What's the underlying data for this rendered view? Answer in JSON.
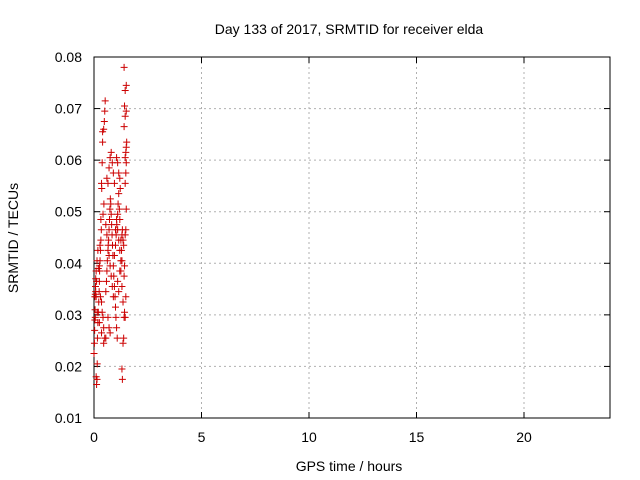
{
  "chart_data": {
    "type": "scatter",
    "title": "Day 133 of 2017, SRMTID for receiver elda",
    "xlabel": "GPS time / hours",
    "ylabel": "SRMTID / TECUs",
    "xlim": [
      0,
      24
    ],
    "ylim": [
      0.01,
      0.08
    ],
    "xticks": [
      0,
      5,
      10,
      15,
      20
    ],
    "yticks": [
      0.01,
      0.02,
      0.03,
      0.04,
      0.05,
      0.06,
      0.07,
      0.08
    ],
    "xtick_labels": [
      "0",
      "5",
      "10",
      "15",
      "20"
    ],
    "ytick_labels": [
      "0.01",
      "0.02",
      "0.03",
      "0.04",
      "0.05",
      "0.06",
      "0.07",
      "0.08"
    ],
    "grid": true,
    "marker": "+",
    "color": "#cc0000",
    "series": [
      {
        "points": [
          [
            0.0,
            0.0225
          ],
          [
            0.02,
            0.0245
          ],
          [
            0.03,
            0.027
          ],
          [
            0.04,
            0.029
          ],
          [
            0.05,
            0.031
          ],
          [
            0.06,
            0.034
          ],
          [
            0.07,
            0.0355
          ],
          [
            0.08,
            0.037
          ],
          [
            0.1,
            0.018
          ],
          [
            0.12,
            0.0165
          ],
          [
            0.14,
            0.0175
          ],
          [
            0.15,
            0.0205
          ],
          [
            0.16,
            0.0255
          ],
          [
            0.18,
            0.0285
          ],
          [
            0.2,
            0.0305
          ],
          [
            0.22,
            0.0325
          ],
          [
            0.24,
            0.0345
          ],
          [
            0.25,
            0.0365
          ],
          [
            0.26,
            0.0385
          ],
          [
            0.28,
            0.0405
          ],
          [
            0.3,
            0.0425
          ],
          [
            0.32,
            0.0445
          ],
          [
            0.34,
            0.0465
          ],
          [
            0.35,
            0.0555
          ],
          [
            0.36,
            0.0545
          ],
          [
            0.38,
            0.0595
          ],
          [
            0.4,
            0.0635
          ],
          [
            0.4,
            0.0655
          ],
          [
            0.45,
            0.066
          ],
          [
            0.48,
            0.0675
          ],
          [
            0.5,
            0.0695
          ],
          [
            0.52,
            0.0715
          ],
          [
            0.2,
            0.039
          ],
          [
            0.25,
            0.0395
          ],
          [
            0.3,
            0.0335
          ],
          [
            0.35,
            0.0325
          ],
          [
            0.38,
            0.0305
          ],
          [
            0.42,
            0.0295
          ],
          [
            0.45,
            0.0275
          ],
          [
            0.5,
            0.0255
          ],
          [
            0.55,
            0.0345
          ],
          [
            0.58,
            0.0365
          ],
          [
            0.6,
            0.0385
          ],
          [
            0.62,
            0.0405
          ],
          [
            0.65,
            0.0425
          ],
          [
            0.68,
            0.0445
          ],
          [
            0.7,
            0.0465
          ],
          [
            0.72,
            0.0485
          ],
          [
            0.74,
            0.0505
          ],
          [
            0.76,
            0.0525
          ],
          [
            0.78,
            0.0515
          ],
          [
            0.8,
            0.0495
          ],
          [
            0.82,
            0.0475
          ],
          [
            0.84,
            0.0455
          ],
          [
            0.86,
            0.0435
          ],
          [
            0.88,
            0.0415
          ],
          [
            0.6,
            0.0565
          ],
          [
            0.65,
            0.0555
          ],
          [
            0.7,
            0.0585
          ],
          [
            0.75,
            0.0605
          ],
          [
            0.8,
            0.0615
          ],
          [
            0.85,
            0.0595
          ],
          [
            0.9,
            0.0575
          ],
          [
            0.95,
            0.0555
          ],
          [
            0.9,
            0.0395
          ],
          [
            0.92,
            0.0375
          ],
          [
            0.95,
            0.0355
          ],
          [
            0.98,
            0.0335
          ],
          [
            1.0,
            0.0315
          ],
          [
            1.02,
            0.0295
          ],
          [
            1.05,
            0.0275
          ],
          [
            1.08,
            0.0255
          ],
          [
            1.0,
            0.0435
          ],
          [
            1.03,
            0.0455
          ],
          [
            1.06,
            0.0475
          ],
          [
            1.1,
            0.0495
          ],
          [
            1.12,
            0.0515
          ],
          [
            1.15,
            0.0535
          ],
          [
            1.18,
            0.0505
          ],
          [
            1.2,
            0.0485
          ],
          [
            1.05,
            0.0605
          ],
          [
            1.1,
            0.0595
          ],
          [
            1.15,
            0.0575
          ],
          [
            1.2,
            0.0565
          ],
          [
            1.22,
            0.0545
          ],
          [
            1.25,
            0.0445
          ],
          [
            1.28,
            0.0425
          ],
          [
            1.3,
            0.0405
          ],
          [
            1.1,
            0.0365
          ],
          [
            1.15,
            0.0345
          ],
          [
            1.2,
            0.0385
          ],
          [
            1.25,
            0.0405
          ],
          [
            1.3,
            0.0455
          ],
          [
            1.32,
            0.0465
          ],
          [
            1.35,
            0.0445
          ],
          [
            1.38,
            0.0435
          ],
          [
            1.3,
            0.0195
          ],
          [
            1.32,
            0.0175
          ],
          [
            1.35,
            0.0245
          ],
          [
            1.38,
            0.0255
          ],
          [
            1.4,
            0.0295
          ],
          [
            1.42,
            0.0305
          ],
          [
            1.45,
            0.0295
          ],
          [
            1.48,
            0.0335
          ],
          [
            1.4,
            0.0375
          ],
          [
            1.42,
            0.0395
          ],
          [
            1.45,
            0.0455
          ],
          [
            1.48,
            0.0465
          ],
          [
            1.5,
            0.0505
          ],
          [
            1.45,
            0.0555
          ],
          [
            1.48,
            0.0575
          ],
          [
            1.5,
            0.0595
          ],
          [
            1.45,
            0.0605
          ],
          [
            1.48,
            0.0615
          ],
          [
            1.5,
            0.0625
          ],
          [
            1.52,
            0.0635
          ],
          [
            1.4,
            0.0665
          ],
          [
            1.45,
            0.0685
          ],
          [
            1.5,
            0.0695
          ],
          [
            1.42,
            0.0705
          ],
          [
            1.45,
            0.0735
          ],
          [
            1.5,
            0.0745
          ],
          [
            1.4,
            0.078
          ],
          [
            0.15,
            0.0305
          ],
          [
            0.1,
            0.0335
          ],
          [
            0.08,
            0.0345
          ],
          [
            0.12,
            0.0365
          ],
          [
            0.18,
            0.0425
          ],
          [
            0.28,
            0.0435
          ],
          [
            0.32,
            0.0485
          ],
          [
            0.42,
            0.0495
          ],
          [
            0.46,
            0.0515
          ],
          [
            0.55,
            0.0475
          ],
          [
            0.6,
            0.0455
          ],
          [
            0.66,
            0.0435
          ],
          [
            0.7,
            0.0415
          ],
          [
            0.75,
            0.0395
          ],
          [
            0.8,
            0.0375
          ],
          [
            0.85,
            0.0355
          ],
          [
            0.9,
            0.0335
          ],
          [
            0.95,
            0.0415
          ],
          [
            1.0,
            0.0465
          ],
          [
            1.05,
            0.0485
          ],
          [
            1.1,
            0.0465
          ],
          [
            1.15,
            0.0445
          ],
          [
            1.2,
            0.0425
          ],
          [
            1.25,
            0.0385
          ],
          [
            1.3,
            0.0355
          ],
          [
            1.35,
            0.0325
          ],
          [
            0.65,
            0.0295
          ],
          [
            0.7,
            0.0275
          ],
          [
            0.75,
            0.0265
          ],
          [
            0.55,
            0.0255
          ],
          [
            0.45,
            0.0245
          ],
          [
            0.35,
            0.0265
          ],
          [
            0.25,
            0.0285
          ],
          [
            0.06,
            0.0295
          ],
          [
            0.04,
            0.0335
          ],
          [
            0.1,
            0.0385
          ],
          [
            0.14,
            0.0405
          ]
        ]
      }
    ]
  }
}
